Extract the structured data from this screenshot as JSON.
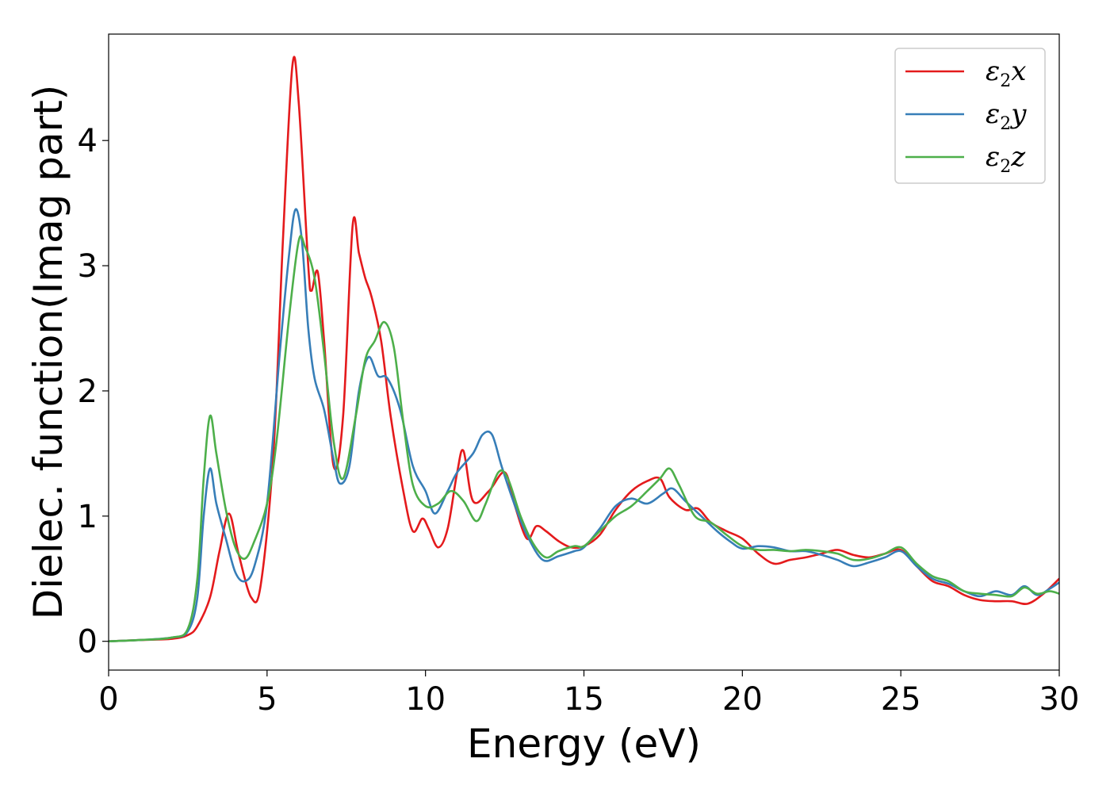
{
  "chart_data": {
    "type": "line",
    "xlabel": "Energy (eV)",
    "ylabel": "Dielec. function(Imag part)",
    "xlim": [
      0,
      30
    ],
    "ylim": [
      -0.23,
      4.85
    ],
    "xticks": [
      0,
      5,
      10,
      15,
      20,
      25,
      30
    ],
    "yticks": [
      0,
      1,
      2,
      3,
      4
    ],
    "grid": false,
    "legend_position": "top-right",
    "series": [
      {
        "name": "ε2x",
        "legend": {
          "base": "ε",
          "sub": "2",
          "suffix": "x"
        },
        "color": "#e41a1c",
        "points": [
          [
            0,
            0
          ],
          [
            1,
            0.01
          ],
          [
            2,
            0.02
          ],
          [
            2.5,
            0.05
          ],
          [
            2.8,
            0.12
          ],
          [
            3.2,
            0.35
          ],
          [
            3.5,
            0.72
          ],
          [
            3.8,
            1.02
          ],
          [
            4.1,
            0.7
          ],
          [
            4.5,
            0.35
          ],
          [
            4.8,
            0.45
          ],
          [
            5.2,
            1.5
          ],
          [
            5.5,
            3.2
          ],
          [
            5.8,
            4.6
          ],
          [
            6.0,
            4.3
          ],
          [
            6.3,
            3.0
          ],
          [
            6.4,
            2.8
          ],
          [
            6.6,
            2.95
          ],
          [
            6.8,
            2.4
          ],
          [
            7.1,
            1.4
          ],
          [
            7.4,
            1.8
          ],
          [
            7.7,
            3.32
          ],
          [
            7.9,
            3.1
          ],
          [
            8.1,
            2.9
          ],
          [
            8.3,
            2.75
          ],
          [
            8.6,
            2.4
          ],
          [
            8.9,
            1.8
          ],
          [
            9.3,
            1.2
          ],
          [
            9.6,
            0.88
          ],
          [
            9.9,
            0.98
          ],
          [
            10.1,
            0.9
          ],
          [
            10.4,
            0.75
          ],
          [
            10.7,
            0.9
          ],
          [
            11.0,
            1.35
          ],
          [
            11.2,
            1.52
          ],
          [
            11.5,
            1.12
          ],
          [
            12.0,
            1.2
          ],
          [
            12.5,
            1.35
          ],
          [
            12.8,
            1.1
          ],
          [
            13.2,
            0.82
          ],
          [
            13.5,
            0.92
          ],
          [
            13.8,
            0.88
          ],
          [
            14.2,
            0.8
          ],
          [
            14.6,
            0.75
          ],
          [
            15.0,
            0.76
          ],
          [
            15.5,
            0.85
          ],
          [
            16.0,
            1.05
          ],
          [
            16.5,
            1.2
          ],
          [
            17.0,
            1.28
          ],
          [
            17.4,
            1.3
          ],
          [
            17.7,
            1.15
          ],
          [
            18.2,
            1.05
          ],
          [
            18.6,
            1.06
          ],
          [
            19.0,
            0.95
          ],
          [
            19.5,
            0.88
          ],
          [
            20.0,
            0.82
          ],
          [
            20.5,
            0.7
          ],
          [
            21.0,
            0.62
          ],
          [
            21.5,
            0.65
          ],
          [
            22.0,
            0.67
          ],
          [
            22.5,
            0.7
          ],
          [
            23.0,
            0.73
          ],
          [
            23.5,
            0.69
          ],
          [
            24.0,
            0.67
          ],
          [
            24.5,
            0.7
          ],
          [
            25.0,
            0.73
          ],
          [
            25.5,
            0.6
          ],
          [
            26.0,
            0.48
          ],
          [
            26.5,
            0.44
          ],
          [
            27.0,
            0.37
          ],
          [
            27.5,
            0.33
          ],
          [
            28.0,
            0.32
          ],
          [
            28.5,
            0.32
          ],
          [
            29.0,
            0.3
          ],
          [
            29.5,
            0.38
          ],
          [
            30.0,
            0.5
          ]
        ]
      },
      {
        "name": "ε2y",
        "legend": {
          "base": "ε",
          "sub": "2",
          "suffix": "y"
        },
        "color": "#377eb8",
        "points": [
          [
            0,
            0
          ],
          [
            1,
            0.01
          ],
          [
            2,
            0.03
          ],
          [
            2.5,
            0.08
          ],
          [
            2.8,
            0.35
          ],
          [
            3.0,
            1.0
          ],
          [
            3.2,
            1.38
          ],
          [
            3.4,
            1.1
          ],
          [
            3.7,
            0.82
          ],
          [
            4.0,
            0.55
          ],
          [
            4.3,
            0.48
          ],
          [
            4.6,
            0.6
          ],
          [
            5.0,
            1.1
          ],
          [
            5.4,
            2.3
          ],
          [
            5.7,
            3.1
          ],
          [
            5.9,
            3.45
          ],
          [
            6.1,
            3.2
          ],
          [
            6.3,
            2.5
          ],
          [
            6.5,
            2.1
          ],
          [
            6.8,
            1.85
          ],
          [
            7.1,
            1.45
          ],
          [
            7.3,
            1.26
          ],
          [
            7.6,
            1.4
          ],
          [
            7.9,
            2.0
          ],
          [
            8.2,
            2.27
          ],
          [
            8.5,
            2.12
          ],
          [
            8.8,
            2.1
          ],
          [
            9.2,
            1.85
          ],
          [
            9.6,
            1.4
          ],
          [
            10.0,
            1.2
          ],
          [
            10.3,
            1.02
          ],
          [
            10.7,
            1.2
          ],
          [
            11.0,
            1.35
          ],
          [
            11.5,
            1.5
          ],
          [
            11.8,
            1.65
          ],
          [
            12.1,
            1.65
          ],
          [
            12.4,
            1.4
          ],
          [
            12.8,
            1.1
          ],
          [
            13.2,
            0.85
          ],
          [
            13.7,
            0.65
          ],
          [
            14.2,
            0.68
          ],
          [
            14.7,
            0.72
          ],
          [
            15.0,
            0.75
          ],
          [
            15.5,
            0.9
          ],
          [
            16.0,
            1.08
          ],
          [
            16.5,
            1.14
          ],
          [
            17.0,
            1.1
          ],
          [
            17.5,
            1.18
          ],
          [
            17.8,
            1.22
          ],
          [
            18.2,
            1.12
          ],
          [
            18.7,
            1.0
          ],
          [
            19.2,
            0.88
          ],
          [
            19.6,
            0.8
          ],
          [
            20.0,
            0.74
          ],
          [
            20.5,
            0.76
          ],
          [
            21.0,
            0.75
          ],
          [
            21.5,
            0.72
          ],
          [
            22.0,
            0.72
          ],
          [
            22.5,
            0.69
          ],
          [
            23.0,
            0.65
          ],
          [
            23.5,
            0.6
          ],
          [
            24.0,
            0.63
          ],
          [
            24.5,
            0.67
          ],
          [
            25.0,
            0.72
          ],
          [
            25.5,
            0.6
          ],
          [
            26.0,
            0.5
          ],
          [
            26.5,
            0.46
          ],
          [
            27.0,
            0.4
          ],
          [
            27.5,
            0.36
          ],
          [
            28.0,
            0.4
          ],
          [
            28.5,
            0.37
          ],
          [
            28.9,
            0.44
          ],
          [
            29.3,
            0.37
          ],
          [
            29.7,
            0.42
          ],
          [
            30.0,
            0.47
          ]
        ]
      },
      {
        "name": "ε2z",
        "legend": {
          "base": "ε",
          "sub": "2",
          "suffix": "z"
        },
        "color": "#4daf4a",
        "points": [
          [
            0,
            0
          ],
          [
            1,
            0.01
          ],
          [
            2,
            0.03
          ],
          [
            2.5,
            0.1
          ],
          [
            2.8,
            0.5
          ],
          [
            3.0,
            1.3
          ],
          [
            3.2,
            1.8
          ],
          [
            3.4,
            1.5
          ],
          [
            3.7,
            1.05
          ],
          [
            4.0,
            0.75
          ],
          [
            4.3,
            0.66
          ],
          [
            4.6,
            0.8
          ],
          [
            5.0,
            1.1
          ],
          [
            5.3,
            1.6
          ],
          [
            5.7,
            2.6
          ],
          [
            6.0,
            3.2
          ],
          [
            6.2,
            3.15
          ],
          [
            6.5,
            2.9
          ],
          [
            6.8,
            2.3
          ],
          [
            7.1,
            1.6
          ],
          [
            7.4,
            1.3
          ],
          [
            7.8,
            1.8
          ],
          [
            8.1,
            2.25
          ],
          [
            8.4,
            2.4
          ],
          [
            8.7,
            2.55
          ],
          [
            9.0,
            2.35
          ],
          [
            9.3,
            1.75
          ],
          [
            9.6,
            1.25
          ],
          [
            10.0,
            1.08
          ],
          [
            10.4,
            1.1
          ],
          [
            10.8,
            1.2
          ],
          [
            11.2,
            1.12
          ],
          [
            11.6,
            0.96
          ],
          [
            11.9,
            1.1
          ],
          [
            12.3,
            1.35
          ],
          [
            12.6,
            1.3
          ],
          [
            13.0,
            1.0
          ],
          [
            13.4,
            0.78
          ],
          [
            13.8,
            0.67
          ],
          [
            14.2,
            0.72
          ],
          [
            14.7,
            0.76
          ],
          [
            15.0,
            0.76
          ],
          [
            15.5,
            0.88
          ],
          [
            16.0,
            1.0
          ],
          [
            16.5,
            1.08
          ],
          [
            17.0,
            1.2
          ],
          [
            17.4,
            1.3
          ],
          [
            17.7,
            1.38
          ],
          [
            18.0,
            1.25
          ],
          [
            18.5,
            1.0
          ],
          [
            19.0,
            0.95
          ],
          [
            19.5,
            0.85
          ],
          [
            20.0,
            0.76
          ],
          [
            20.5,
            0.73
          ],
          [
            21.0,
            0.73
          ],
          [
            21.5,
            0.72
          ],
          [
            22.0,
            0.73
          ],
          [
            22.5,
            0.72
          ],
          [
            23.0,
            0.7
          ],
          [
            23.5,
            0.65
          ],
          [
            24.0,
            0.66
          ],
          [
            24.5,
            0.7
          ],
          [
            25.0,
            0.75
          ],
          [
            25.5,
            0.62
          ],
          [
            26.0,
            0.52
          ],
          [
            26.5,
            0.48
          ],
          [
            27.0,
            0.4
          ],
          [
            27.5,
            0.38
          ],
          [
            28.0,
            0.37
          ],
          [
            28.5,
            0.36
          ],
          [
            28.9,
            0.43
          ],
          [
            29.3,
            0.38
          ],
          [
            29.7,
            0.4
          ],
          [
            30.0,
            0.38
          ]
        ]
      }
    ]
  }
}
